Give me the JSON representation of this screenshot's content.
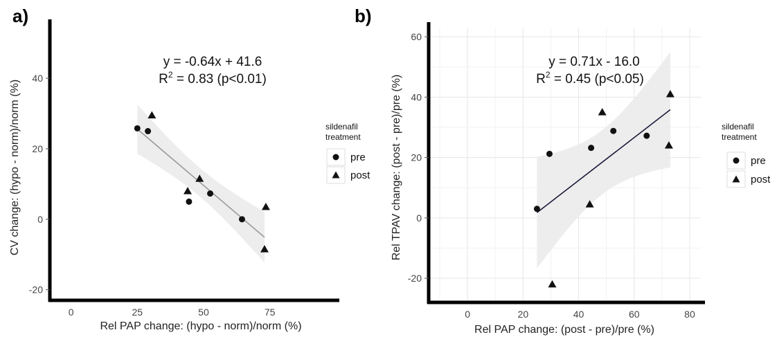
{
  "chart_data": [
    {
      "panel": "a)",
      "type": "scatter",
      "xlabel": "Rel PAP change: (hypo - norm)/norm (%)",
      "ylabel": "CV change: (hypo - norm)/norm (%)",
      "xlim": [
        -8,
        96
      ],
      "ylim": [
        -23,
        52
      ],
      "xticks": [
        0,
        25,
        50,
        75
      ],
      "yticks": [
        -20,
        0,
        20,
        40
      ],
      "grid": false,
      "equation": "y = -0.64x + 41.6",
      "r2_prefix": "R",
      "r2_sup": "2",
      "r2_suffix": " = 0.83 (p<0.01)",
      "fit": {
        "slope": -0.64,
        "intercept": 41.6,
        "x_range": [
          25,
          73
        ],
        "color": "#999999",
        "band_color": "#ebebeb"
      },
      "series": [
        {
          "name": "pre",
          "marker": "circle",
          "x": [
            25,
            29,
            44.5,
            52.5,
            64.5
          ],
          "y": [
            25.8,
            25,
            5,
            7.3,
            0
          ]
        },
        {
          "name": "post",
          "marker": "triangle",
          "x": [
            30.5,
            44,
            48.5,
            73,
            73.5
          ],
          "y": [
            29.5,
            8,
            11.5,
            -8.5,
            3.5
          ]
        }
      ],
      "legend": {
        "title": [
          "sildenafil",
          "treatment"
        ],
        "entries": [
          "pre",
          "post"
        ],
        "position": "right"
      }
    },
    {
      "panel": "b)",
      "type": "scatter",
      "xlabel": "Rel PAP change: (post - pre)/pre (%)",
      "ylabel": "Rel TPAV change: (post - pre)/pre (%)",
      "xlim": [
        -14,
        84
      ],
      "ylim": [
        -28,
        63
      ],
      "xticks": [
        0,
        20,
        40,
        60,
        80
      ],
      "yticks": [
        -20,
        0,
        20,
        40,
        60
      ],
      "grid": true,
      "equation": "y = 0.71x - 16.0",
      "r2_prefix": "R",
      "r2_sup": "2",
      "r2_suffix": " = 0.45 (p<0.05)",
      "fit": {
        "slope": 0.71,
        "intercept": -16.0,
        "x_range": [
          25,
          73
        ],
        "color": "#1a1a3a",
        "band_color": "#ebebeb"
      },
      "series": [
        {
          "name": "pre",
          "marker": "circle",
          "x": [
            25,
            29.5,
            44.5,
            52.5,
            64.5
          ],
          "y": [
            3,
            21.2,
            23.2,
            28.8,
            27.2
          ]
        },
        {
          "name": "post",
          "marker": "triangle",
          "x": [
            30.5,
            44,
            48.5,
            72.5,
            73
          ],
          "y": [
            -22,
            4.5,
            35,
            24,
            41
          ]
        }
      ],
      "legend": {
        "title": [
          "sildenafil",
          "treatment"
        ],
        "entries": [
          "pre",
          "post"
        ],
        "position": "right"
      }
    }
  ]
}
